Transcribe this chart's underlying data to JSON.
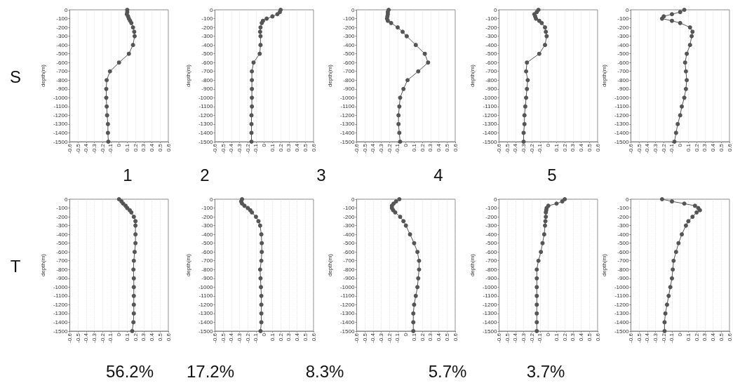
{
  "chart_data": [
    {
      "type": "line",
      "ylabel": "depth(m)",
      "annotations": [
        "S",
        "1"
      ],
      "xlim": [
        -0.6,
        0.6
      ],
      "xticks": [
        -0.6,
        -0.5,
        -0.4,
        -0.3,
        -0.2,
        -0.1,
        0,
        0.1,
        0.2,
        0.3,
        0.4,
        0.5,
        0.6
      ],
      "ylim": [
        -1500,
        0
      ],
      "yticks": [
        0,
        -100,
        -200,
        -300,
        -400,
        -500,
        -600,
        -700,
        -800,
        -900,
        -1000,
        -1100,
        -1200,
        -1300,
        -1400,
        -1500
      ],
      "grid": "x",
      "marker": "circle",
      "line_style": "solid",
      "series": [
        {
          "color": "#555555",
          "x": [
            0.1,
            0.1,
            0.095,
            0.11,
            0.12,
            0.135,
            0.15,
            0.17,
            0.185,
            0.19,
            0.17,
            0.12,
            0.0,
            -0.11,
            -0.15,
            -0.155,
            -0.155,
            -0.15,
            -0.145,
            -0.135,
            -0.135,
            -0.13
          ],
          "values": [
            0,
            -25,
            -50,
            -75,
            -100,
            -125,
            -150,
            -200,
            -250,
            -300,
            -400,
            -500,
            -600,
            -700,
            -800,
            -900,
            -1000,
            -1100,
            -1200,
            -1300,
            -1400,
            -1500
          ]
        }
      ]
    },
    {
      "type": "line",
      "ylabel": "depth(m)",
      "annotations": [
        "2"
      ],
      "xlim": [
        -0.6,
        0.6
      ],
      "xticks": [
        -0.6,
        -0.5,
        -0.4,
        -0.3,
        -0.2,
        -0.1,
        0,
        0.1,
        0.2,
        0.3,
        0.4,
        0.5,
        0.6
      ],
      "ylim": [
        -1500,
        0
      ],
      "yticks": [
        0,
        -100,
        -200,
        -300,
        -400,
        -500,
        -600,
        -700,
        -800,
        -900,
        -1000,
        -1100,
        -1200,
        -1300,
        -1400,
        -1500
      ],
      "grid": "x",
      "marker": "circle",
      "line_style": "solid",
      "series": [
        {
          "color": "#555555",
          "x": [
            0.2,
            0.19,
            0.16,
            0.1,
            0.03,
            -0.015,
            -0.03,
            -0.045,
            -0.05,
            -0.045,
            -0.045,
            -0.055,
            -0.13,
            -0.15,
            -0.15,
            -0.15,
            -0.15,
            -0.15,
            -0.155,
            -0.155,
            -0.155,
            -0.155
          ],
          "values": [
            0,
            -25,
            -50,
            -75,
            -100,
            -125,
            -150,
            -200,
            -250,
            -300,
            -400,
            -500,
            -600,
            -700,
            -800,
            -900,
            -1000,
            -1100,
            -1200,
            -1300,
            -1400,
            -1500
          ]
        }
      ]
    },
    {
      "type": "line",
      "ylabel": "depth(m)",
      "annotations": [
        "3"
      ],
      "xlim": [
        -0.6,
        0.6
      ],
      "xticks": [
        -0.6,
        -0.5,
        -0.4,
        -0.3,
        -0.2,
        -0.1,
        0,
        0.1,
        0.2,
        0.3,
        0.4,
        0.5,
        0.6
      ],
      "ylim": [
        -1500,
        0
      ],
      "yticks": [
        0,
        -100,
        -200,
        -300,
        -400,
        -500,
        -600,
        -700,
        -800,
        -900,
        -1000,
        -1100,
        -1200,
        -1300,
        -1400,
        -1500
      ],
      "grid": "x",
      "marker": "circle",
      "line_style": "solid",
      "series": [
        {
          "color": "#555555",
          "x": [
            -0.21,
            -0.22,
            -0.22,
            -0.225,
            -0.23,
            -0.22,
            -0.18,
            -0.1,
            -0.04,
            0.01,
            0.12,
            0.23,
            0.27,
            0.15,
            0.02,
            -0.03,
            -0.07,
            -0.08,
            -0.09,
            -0.09,
            -0.08,
            -0.07
          ],
          "values": [
            0,
            -25,
            -50,
            -75,
            -100,
            -125,
            -150,
            -200,
            -250,
            -300,
            -400,
            -500,
            -600,
            -700,
            -800,
            -900,
            -1000,
            -1100,
            -1200,
            -1300,
            -1400,
            -1500
          ]
        }
      ]
    },
    {
      "type": "line",
      "ylabel": "depth(m)",
      "annotations": [
        "4"
      ],
      "xlim": [
        -0.6,
        0.6
      ],
      "xticks": [
        -0.6,
        -0.5,
        -0.4,
        -0.3,
        -0.2,
        -0.1,
        0,
        0.1,
        0.2,
        0.3,
        0.4,
        0.5,
        0.6
      ],
      "ylim": [
        -1500,
        0
      ],
      "yticks": [
        0,
        -100,
        -200,
        -300,
        -400,
        -500,
        -600,
        -700,
        -800,
        -900,
        -1000,
        -1100,
        -1200,
        -1300,
        -1400,
        -1500
      ],
      "grid": "x",
      "marker": "circle",
      "line_style": "solid",
      "series": [
        {
          "color": "#555555",
          "x": [
            -0.12,
            -0.14,
            -0.17,
            -0.16,
            -0.15,
            -0.11,
            -0.08,
            -0.04,
            -0.03,
            -0.02,
            -0.04,
            -0.11,
            -0.26,
            -0.27,
            -0.25,
            -0.26,
            -0.27,
            -0.28,
            -0.29,
            -0.29,
            -0.3,
            -0.3
          ],
          "values": [
            0,
            -25,
            -50,
            -75,
            -100,
            -125,
            -150,
            -200,
            -250,
            -300,
            -400,
            -500,
            -600,
            -700,
            -800,
            -900,
            -1000,
            -1100,
            -1200,
            -1300,
            -1400,
            -1500
          ]
        }
      ]
    },
    {
      "type": "line",
      "ylabel": "depth(m)",
      "annotations": [
        "5"
      ],
      "xlim": [
        -0.6,
        0.6
      ],
      "xticks": [
        -0.6,
        -0.5,
        -0.4,
        -0.3,
        -0.2,
        -0.1,
        0,
        0.1,
        0.2,
        0.3,
        0.4,
        0.5,
        0.6
      ],
      "ylim": [
        -1500,
        0
      ],
      "yticks": [
        0,
        -100,
        -200,
        -300,
        -400,
        -500,
        -600,
        -700,
        -800,
        -900,
        -1000,
        -1100,
        -1200,
        -1300,
        -1400,
        -1500
      ],
      "grid": "x",
      "marker": "circle",
      "line_style": "solid",
      "series": [
        {
          "color": "#555555",
          "x": [
            0.05,
            0.0,
            -0.1,
            -0.2,
            -0.22,
            -0.1,
            0.0,
            0.12,
            0.15,
            0.14,
            0.12,
            0.08,
            0.06,
            0.07,
            0.08,
            0.07,
            0.05,
            0.02,
            0.0,
            -0.03,
            -0.05,
            -0.07
          ],
          "values": [
            0,
            -25,
            -50,
            -75,
            -100,
            -125,
            -150,
            -200,
            -250,
            -300,
            -400,
            -500,
            -600,
            -700,
            -800,
            -900,
            -1000,
            -1100,
            -1200,
            -1300,
            -1400,
            -1500
          ]
        }
      ]
    },
    {
      "type": "line",
      "ylabel": "depth(m)",
      "annotations": [
        "T",
        "56.2%"
      ],
      "xlim": [
        -0.6,
        0.6
      ],
      "xticks": [
        -0.6,
        -0.5,
        -0.4,
        -0.3,
        -0.2,
        -0.1,
        0,
        0.1,
        0.2,
        0.3,
        0.4,
        0.5,
        0.6
      ],
      "ylim": [
        -1500,
        0
      ],
      "yticks": [
        0,
        -100,
        -200,
        -300,
        -400,
        -500,
        -600,
        -700,
        -800,
        -900,
        -1000,
        -1100,
        -1200,
        -1300,
        -1400,
        -1500
      ],
      "grid": "x",
      "marker": "circle",
      "line_style": "solid",
      "series": [
        {
          "color": "#555555",
          "x": [
            0.0,
            0.03,
            0.05,
            0.08,
            0.1,
            0.13,
            0.15,
            0.18,
            0.2,
            0.2,
            0.2,
            0.2,
            0.19,
            0.18,
            0.175,
            0.18,
            0.18,
            0.18,
            0.18,
            0.18,
            0.175,
            0.16
          ],
          "values": [
            0,
            -25,
            -50,
            -75,
            -100,
            -125,
            -150,
            -200,
            -250,
            -300,
            -400,
            -500,
            -600,
            -700,
            -800,
            -900,
            -1000,
            -1100,
            -1200,
            -1300,
            -1400,
            -1500
          ]
        }
      ]
    },
    {
      "type": "line",
      "ylabel": "depth(m)",
      "annotations": [
        "17.2%"
      ],
      "xlim": [
        -0.6,
        0.6
      ],
      "xticks": [
        -0.6,
        -0.5,
        -0.4,
        -0.3,
        -0.2,
        -0.1,
        0,
        0.1,
        0.2,
        0.3,
        0.4,
        0.5,
        0.6
      ],
      "ylim": [
        -1500,
        0
      ],
      "yticks": [
        0,
        -100,
        -200,
        -300,
        -400,
        -500,
        -600,
        -700,
        -800,
        -900,
        -1000,
        -1100,
        -1200,
        -1300,
        -1400,
        -1500
      ],
      "grid": "x",
      "marker": "circle",
      "line_style": "solid",
      "series": [
        {
          "color": "#555555",
          "x": [
            -0.27,
            -0.28,
            -0.27,
            -0.24,
            -0.2,
            -0.17,
            -0.15,
            -0.1,
            -0.07,
            -0.05,
            -0.035,
            -0.03,
            -0.03,
            -0.035,
            -0.05,
            -0.045,
            -0.04,
            -0.035,
            -0.035,
            -0.035,
            -0.035,
            -0.045
          ],
          "values": [
            0,
            -25,
            -50,
            -75,
            -100,
            -125,
            -150,
            -200,
            -250,
            -300,
            -400,
            -500,
            -600,
            -700,
            -800,
            -900,
            -1000,
            -1100,
            -1200,
            -1300,
            -1400,
            -1500
          ]
        }
      ]
    },
    {
      "type": "line",
      "ylabel": "depth(m)",
      "annotations": [
        "8.3%"
      ],
      "xlim": [
        -0.6,
        0.6
      ],
      "xticks": [
        -0.6,
        -0.5,
        -0.4,
        -0.3,
        -0.2,
        -0.1,
        0,
        0.1,
        0.2,
        0.3,
        0.4,
        0.5,
        0.6
      ],
      "ylim": [
        -1500,
        0
      ],
      "yticks": [
        0,
        -100,
        -200,
        -300,
        -400,
        -500,
        -600,
        -700,
        -800,
        -900,
        -1000,
        -1100,
        -1200,
        -1300,
        -1400,
        -1500
      ],
      "grid": "x",
      "marker": "circle",
      "line_style": "solid",
      "series": [
        {
          "color": "#555555",
          "x": [
            -0.08,
            -0.12,
            -0.15,
            -0.17,
            -0.17,
            -0.155,
            -0.13,
            -0.07,
            -0.03,
            0.0,
            0.05,
            0.1,
            0.14,
            0.16,
            0.16,
            0.15,
            0.14,
            0.12,
            0.1,
            0.09,
            0.09,
            0.09
          ],
          "values": [
            0,
            -25,
            -50,
            -75,
            -100,
            -125,
            -150,
            -200,
            -250,
            -300,
            -400,
            -500,
            -600,
            -700,
            -800,
            -900,
            -1000,
            -1100,
            -1200,
            -1300,
            -1400,
            -1500
          ]
        }
      ]
    },
    {
      "type": "line",
      "ylabel": "depth(m)",
      "annotations": [
        "5.7%"
      ],
      "xlim": [
        -0.6,
        0.6
      ],
      "xticks": [
        -0.6,
        -0.5,
        -0.4,
        -0.3,
        -0.2,
        -0.1,
        0,
        0.1,
        0.2,
        0.3,
        0.4,
        0.5,
        0.6
      ],
      "ylim": [
        -1500,
        0
      ],
      "yticks": [
        0,
        -100,
        -200,
        -300,
        -400,
        -500,
        -600,
        -700,
        -800,
        -900,
        -1000,
        -1100,
        -1200,
        -1300,
        -1400,
        -1500
      ],
      "grid": "x",
      "marker": "circle",
      "line_style": "solid",
      "series": [
        {
          "color": "#555555",
          "x": [
            0.2,
            0.17,
            0.1,
            0.0,
            -0.02,
            -0.025,
            -0.03,
            -0.03,
            -0.035,
            -0.04,
            -0.05,
            -0.07,
            -0.09,
            -0.12,
            -0.14,
            -0.14,
            -0.14,
            -0.14,
            -0.14,
            -0.14,
            -0.14,
            -0.14
          ],
          "values": [
            0,
            -25,
            -50,
            -75,
            -100,
            -125,
            -150,
            -200,
            -250,
            -300,
            -400,
            -500,
            -600,
            -700,
            -800,
            -900,
            -1000,
            -1100,
            -1200,
            -1300,
            -1400,
            -1500
          ]
        }
      ]
    },
    {
      "type": "line",
      "ylabel": "depth(m)",
      "annotations": [
        "3.7%"
      ],
      "xlim": [
        -0.6,
        0.6
      ],
      "xticks": [
        -0.6,
        -0.5,
        -0.4,
        -0.3,
        -0.2,
        -0.1,
        0,
        0.1,
        0.2,
        0.3,
        0.4,
        0.5,
        0.6
      ],
      "ylim": [
        -1500,
        0
      ],
      "yticks": [
        0,
        -100,
        -200,
        -300,
        -400,
        -500,
        -600,
        -700,
        -800,
        -900,
        -1000,
        -1100,
        -1200,
        -1300,
        -1400,
        -1500
      ],
      "grid": "x",
      "marker": "circle",
      "line_style": "solid",
      "series": [
        {
          "color": "#555555",
          "x": [
            -0.22,
            -0.1,
            0.05,
            0.18,
            0.22,
            0.24,
            0.2,
            0.15,
            0.1,
            0.07,
            0.02,
            -0.02,
            -0.05,
            -0.08,
            -0.09,
            -0.1,
            -0.12,
            -0.14,
            -0.16,
            -0.18,
            -0.19,
            -0.19
          ],
          "values": [
            0,
            -25,
            -50,
            -75,
            -100,
            -125,
            -150,
            -200,
            -250,
            -300,
            -400,
            -500,
            -600,
            -700,
            -800,
            -900,
            -1000,
            -1100,
            -1200,
            -1300,
            -1400,
            -1500
          ]
        }
      ]
    }
  ]
}
